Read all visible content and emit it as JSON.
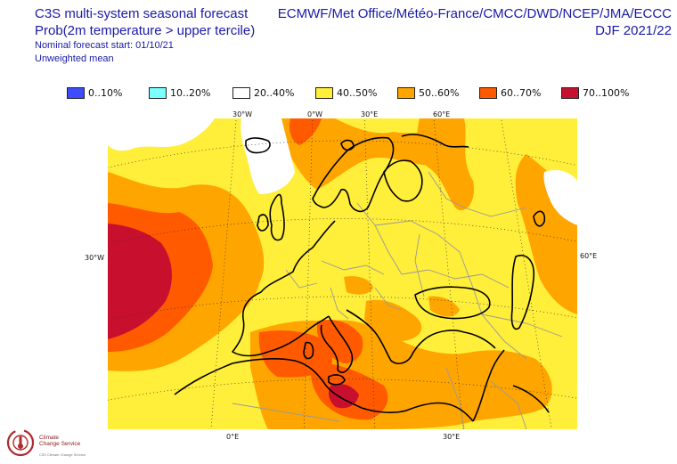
{
  "header": {
    "title": "C3S multi-system seasonal forecast",
    "variable": "Prob(2m temperature > upper tercile)",
    "start": "Nominal forecast start: 01/10/21",
    "weighting": "Unweighted mean"
  },
  "agencies": {
    "line1": "ECMWF/Met Office/Météo-France/CMCC/DWD/NCEP/JMA/ECCC",
    "season": "DJF 2021/22"
  },
  "legend": [
    {
      "label": "0..10%",
      "color": "#3d4cff"
    },
    {
      "label": "10..20%",
      "color": "#7cffff"
    },
    {
      "label": "20..40%",
      "color": "#ffffff"
    },
    {
      "label": "40..50%",
      "color": "#ffee3a"
    },
    {
      "label": "50..60%",
      "color": "#ffa500"
    },
    {
      "label": "60..70%",
      "color": "#ff5a00"
    },
    {
      "label": "70..100%",
      "color": "#c8102e"
    }
  ],
  "map": {
    "top_labels": [
      "30°W",
      "0°W",
      "30°E",
      "60°E"
    ],
    "left_label": "30°W",
    "right_label": "60°E",
    "bottom_labels": [
      "0°E",
      "30°E"
    ]
  },
  "logo": {
    "name": "Climate\nChange Service",
    "foot": "C3S Climate Change Service"
  }
}
